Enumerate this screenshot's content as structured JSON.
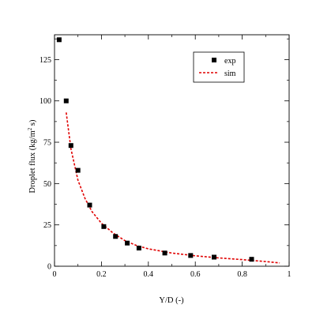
{
  "chart_data": {
    "type": "scatter",
    "xlabel": "Y/D (-)",
    "ylabel_main": "Droplet flux (kg/m",
    "ylabel_sup": "2",
    "ylabel_tail": " s)",
    "xlim": [
      0,
      1
    ],
    "ylim": [
      0,
      140
    ],
    "x_ticks_major": [
      0,
      0.2,
      0.4,
      0.6,
      0.8,
      1
    ],
    "x_tick_labels": [
      "0",
      "0.2",
      "0.4",
      "0.6",
      "0.8",
      "1"
    ],
    "y_ticks_major": [
      0,
      25,
      50,
      75,
      100,
      125
    ],
    "y_tick_labels": [
      "0",
      "25",
      "50",
      "75",
      "100",
      "125"
    ],
    "grid": false,
    "legend_position": "top-right",
    "series": [
      {
        "name": "exp",
        "style": "square-marker",
        "color": "#000000",
        "x": [
          0.02,
          0.05,
          0.07,
          0.1,
          0.15,
          0.21,
          0.26,
          0.31,
          0.36,
          0.47,
          0.58,
          0.68,
          0.84
        ],
        "y": [
          137,
          100,
          73,
          58,
          37,
          24,
          18,
          14,
          11,
          8,
          6.5,
          5.5,
          4.2
        ]
      },
      {
        "name": "sim",
        "style": "dashed-line",
        "color": "#e00000",
        "x": [
          0.05,
          0.07,
          0.1,
          0.13,
          0.16,
          0.2,
          0.25,
          0.3,
          0.35,
          0.4,
          0.5,
          0.6,
          0.7,
          0.8,
          0.9,
          0.96
        ],
        "y": [
          93,
          71,
          52,
          41,
          33,
          26,
          20,
          15.5,
          12.5,
          10.5,
          8,
          6.3,
          5,
          4,
          2.8,
          2
        ]
      }
    ]
  }
}
